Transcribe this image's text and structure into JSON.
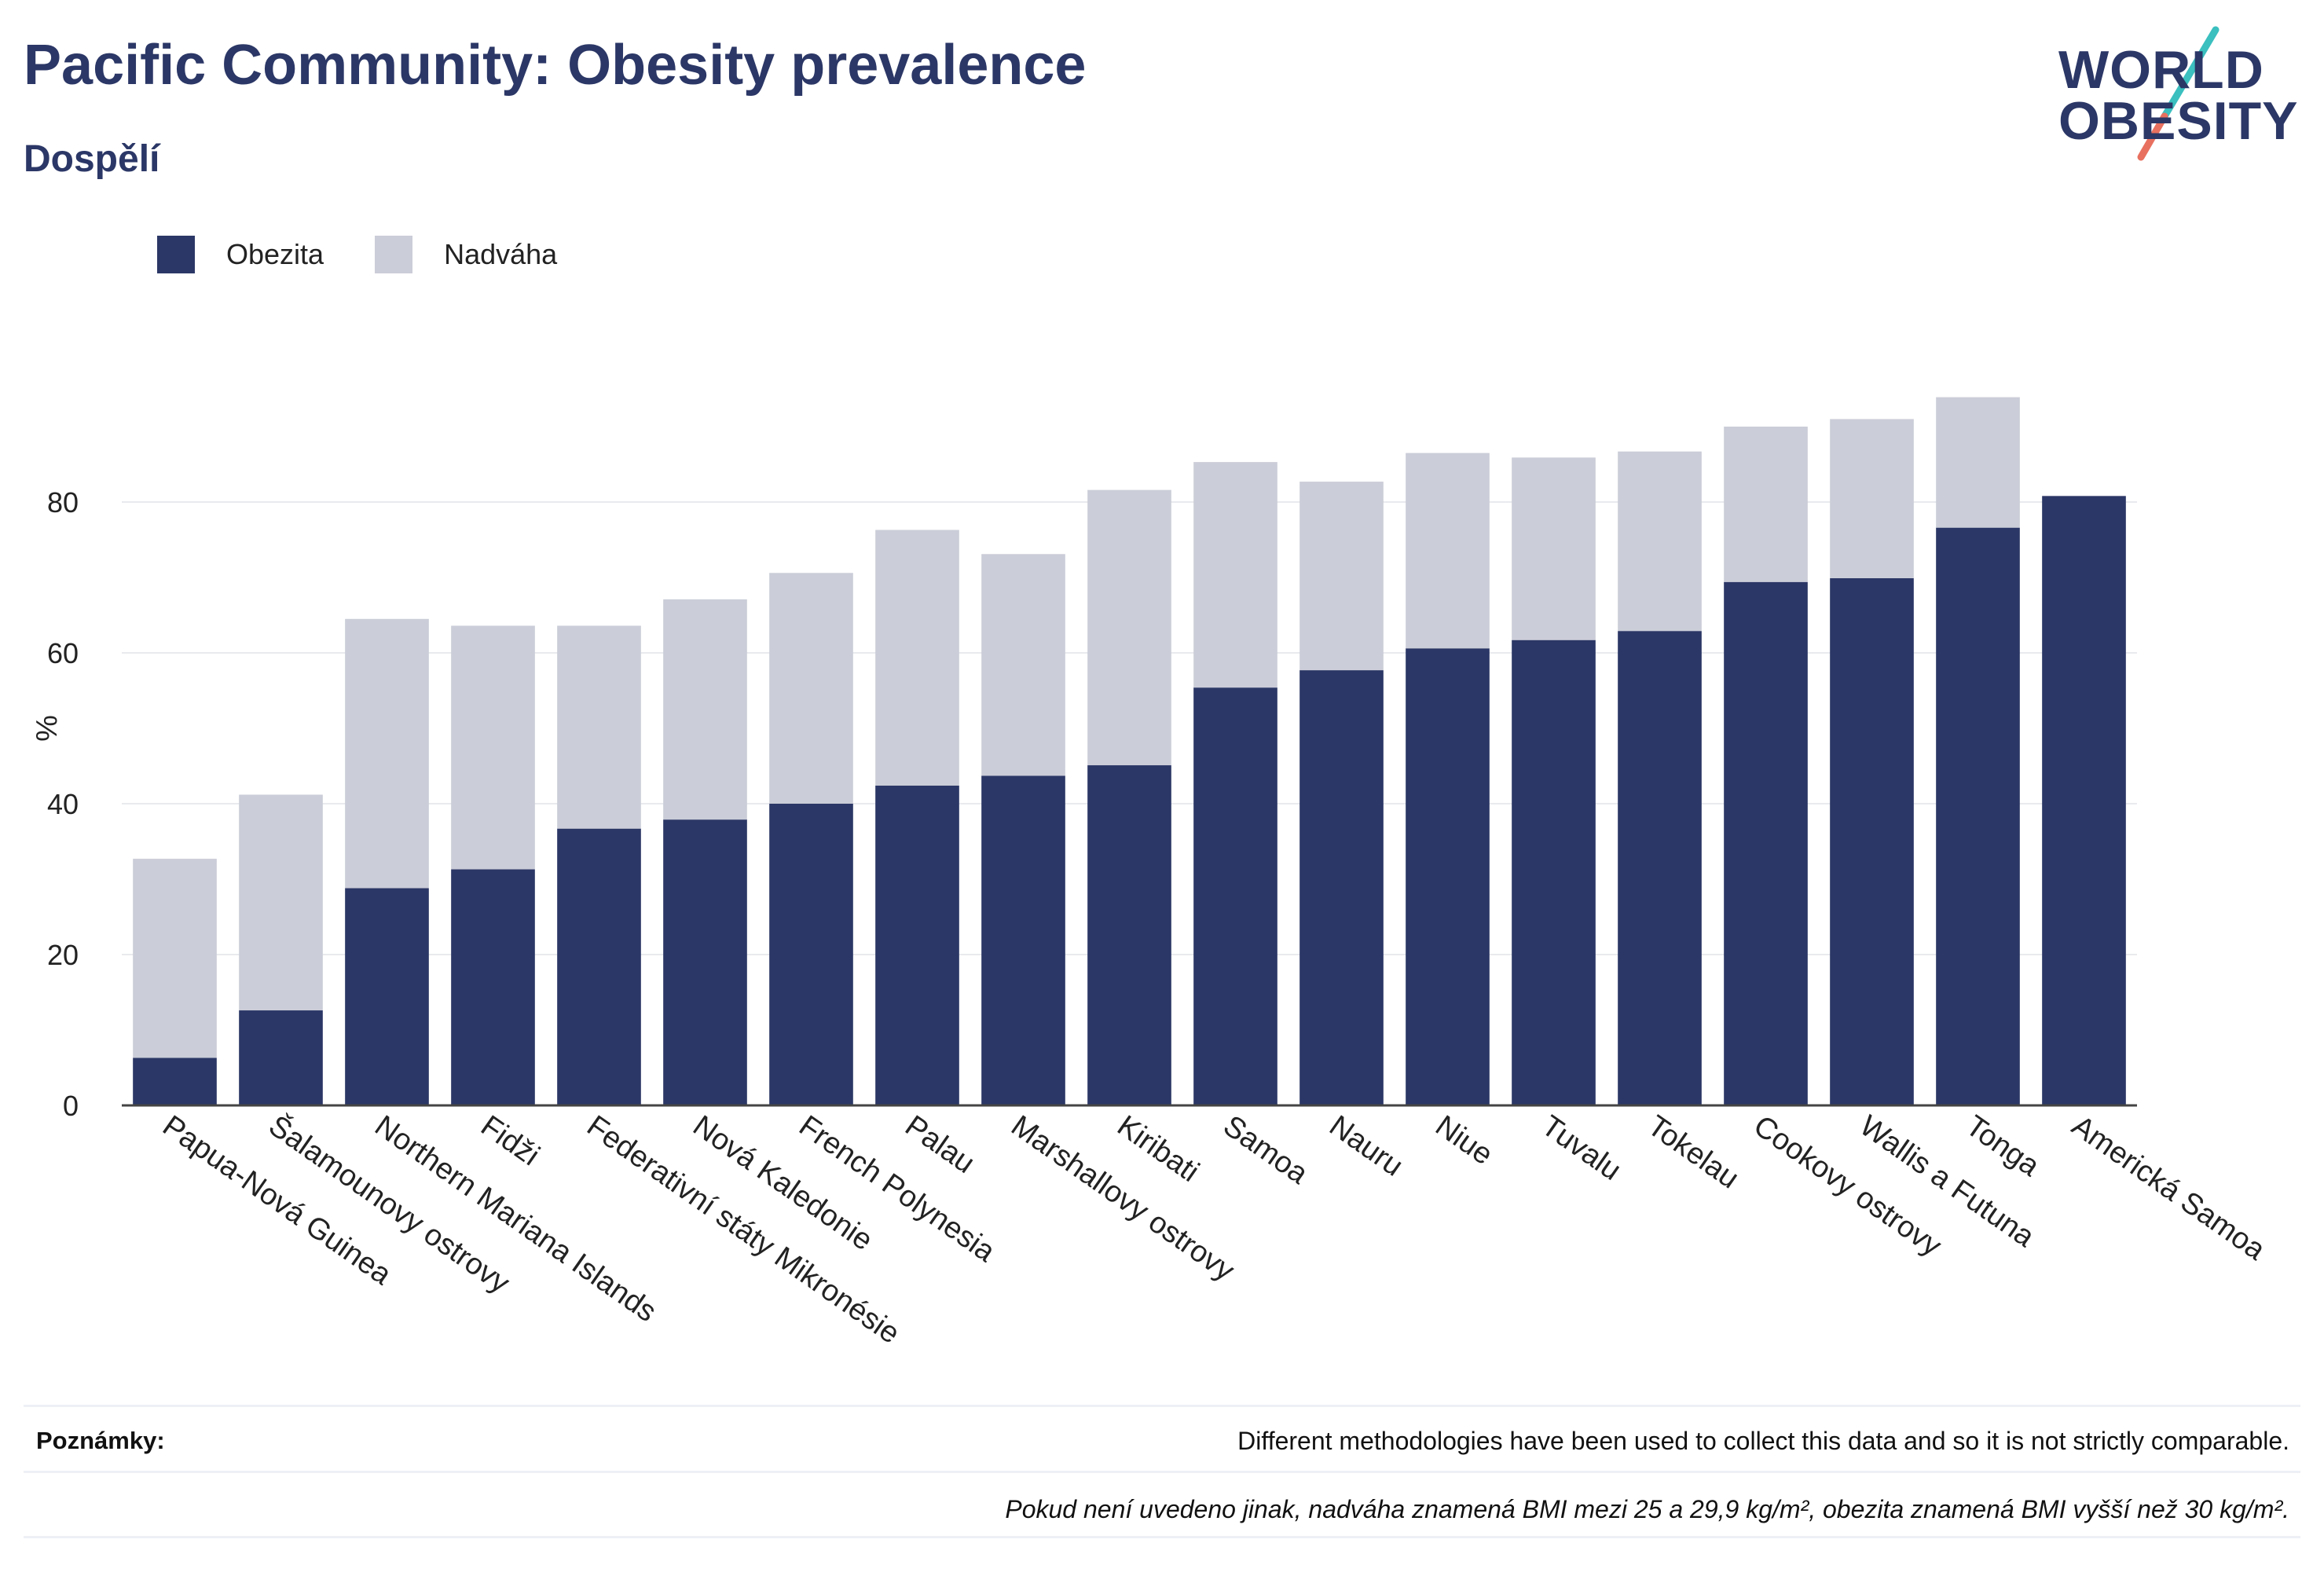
{
  "header": {
    "title": "Pacific Community: Obesity prevalence",
    "subtitle": "Dospělí",
    "logo_line1": "WORLD",
    "logo_line2": "OBESITY"
  },
  "colors": {
    "obesity": "#2b3766",
    "overweight": "#cbcdd8",
    "accent_teal": "#3bbfbf",
    "accent_coral": "#e8705f"
  },
  "legend": {
    "items": [
      {
        "label": "Obezita",
        "color": "#2b3766"
      },
      {
        "label": "Nadváha",
        "color": "#cbcdd8"
      }
    ],
    "placement": "top-left"
  },
  "chart_data": {
    "type": "bar",
    "stacked": true,
    "categories": [
      "Papua-Nová Guinea",
      "Šalamounovy ostrovy",
      "Northern Mariana Islands",
      "Fidži",
      "Federativní státy Mikronésie",
      "Nová Kaledonie",
      "French Polynesia",
      "Palau",
      "Marshallovy ostrovy",
      "Kiribati",
      "Samoa",
      "Nauru",
      "Niue",
      "Tuvalu",
      "Tokelau",
      "Cookovy ostrovy",
      "Wallis a Futuna",
      "Tonga",
      "Americká Samoa"
    ],
    "series": [
      {
        "name": "Obezita",
        "values": [
          6.3,
          12.6,
          28.8,
          31.3,
          36.7,
          37.9,
          40.0,
          42.4,
          43.7,
          45.1,
          55.4,
          57.7,
          60.6,
          61.7,
          62.9,
          69.4,
          69.9,
          76.6,
          80.8
        ]
      },
      {
        "name": "Nadváha",
        "values": [
          26.4,
          28.6,
          35.7,
          32.3,
          26.9,
          29.2,
          30.6,
          33.9,
          29.4,
          36.5,
          29.9,
          25.0,
          25.9,
          24.2,
          23.8,
          20.6,
          21.1,
          17.3,
          0
        ]
      }
    ],
    "ylabel": "%",
    "xlabel": "",
    "ylim": [
      0,
      100
    ],
    "yticks": [
      0,
      20,
      40,
      60,
      80
    ],
    "grid": true
  },
  "notes": {
    "label": "Poznámky:",
    "line1": "Different methodologies have been used to collect this data and so it is not strictly comparable.",
    "line2": "Pokud není uvedeno jinak, nadváha znamená BMI mezi 25 a 29,9 kg/m², obezita znamená BMI vyšší než 30 kg/m²."
  }
}
